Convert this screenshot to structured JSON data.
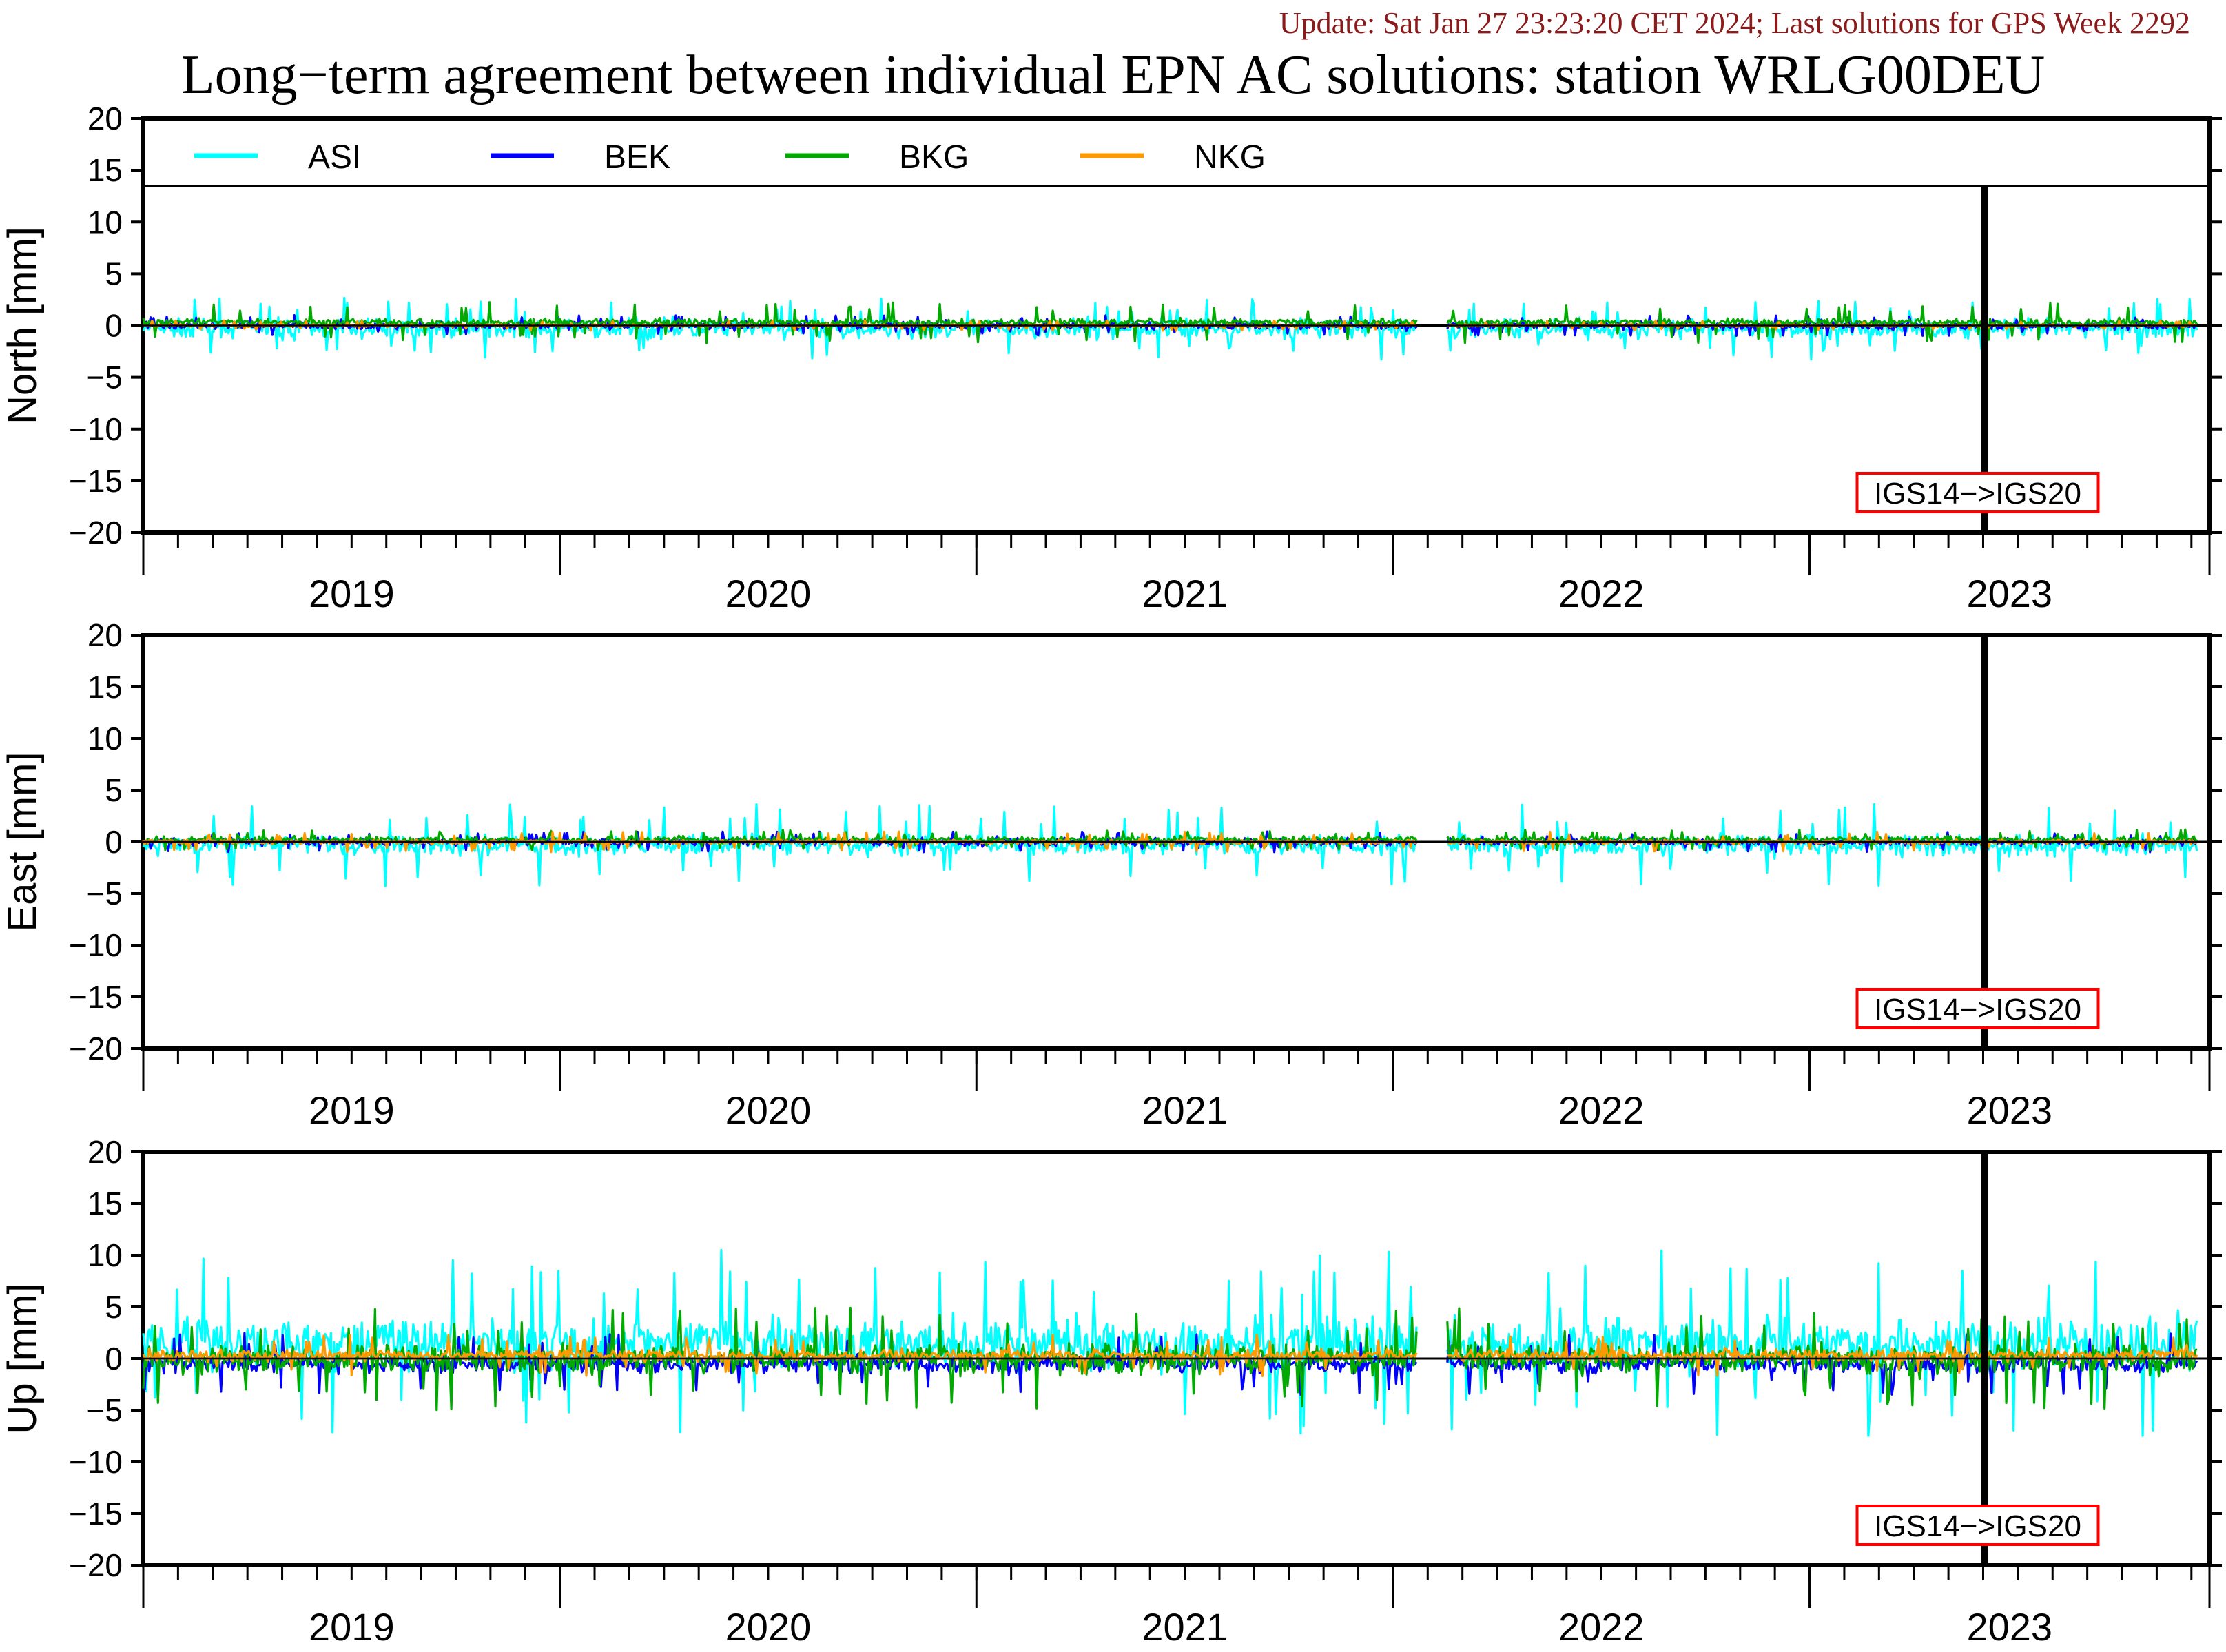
{
  "update_text": "Update: Sat Jan 27 23:23:20 CET 2024; Last solutions for GPS Week 2292",
  "title": "Long−term agreement between individual EPN AC solutions: station WRLG00DEU",
  "colors": {
    "ASI": "#00ffff",
    "BEK": "#0000ff",
    "BKG": "#00aa00",
    "NKG": "#ff9900",
    "annotation_border": "#ff0000",
    "update_text": "#8b1a1a"
  },
  "legend": [
    "ASI",
    "BEK",
    "BKG",
    "NKG"
  ],
  "annotation": {
    "label": "IGS14−>IGS20",
    "date": 2022.92
  },
  "chart_data": [
    {
      "type": "line",
      "panel": "north",
      "ylabel": "North [mm]",
      "ylim": [
        -20,
        20
      ],
      "yticks": [
        20,
        15,
        10,
        5,
        0,
        -5,
        -10,
        -15,
        -20
      ],
      "xlim": [
        2018.5,
        2023.46
      ],
      "xtick_labels": [
        "2019",
        "2020",
        "2021",
        "2022",
        "2023"
      ],
      "legend_in_panel": true,
      "series": [
        {
          "name": "ASI",
          "amplitude": 1.3,
          "bias": -0.3,
          "spike": 3.0
        },
        {
          "name": "BEK",
          "amplitude": 0.5,
          "bias": 0.0,
          "spike": 1.0
        },
        {
          "name": "BKG",
          "amplitude": 0.5,
          "bias": 0.3,
          "spike": 2.0
        },
        {
          "name": "NKG",
          "amplitude": 0.2,
          "bias": 0.0,
          "spike": 0.5
        }
      ]
    },
    {
      "type": "line",
      "panel": "east",
      "ylabel": "East [mm]",
      "ylim": [
        -20,
        20
      ],
      "yticks": [
        20,
        15,
        10,
        5,
        0,
        -5,
        -10,
        -15,
        -20
      ],
      "xlim": [
        2018.5,
        2023.46
      ],
      "xtick_labels": [
        "2019",
        "2020",
        "2021",
        "2022",
        "2023"
      ],
      "legend_in_panel": false,
      "series": [
        {
          "name": "ASI",
          "amplitude": 1.4,
          "bias": -0.3,
          "spike": 4.0
        },
        {
          "name": "BEK",
          "amplitude": 0.5,
          "bias": 0.0,
          "spike": 1.0
        },
        {
          "name": "BKG",
          "amplitude": 0.5,
          "bias": 0.2,
          "spike": 1.0
        },
        {
          "name": "NKG",
          "amplitude": 0.3,
          "bias": 0.0,
          "spike": 1.0
        }
      ]
    },
    {
      "type": "line",
      "panel": "up",
      "ylabel": "Up [mm]",
      "ylim": [
        -20,
        20
      ],
      "yticks": [
        20,
        15,
        10,
        5,
        0,
        -5,
        -10,
        -15,
        -20
      ],
      "xlim": [
        2018.5,
        2023.46
      ],
      "xtick_labels": [
        "2019",
        "2020",
        "2021",
        "2022",
        "2023"
      ],
      "legend_in_panel": false,
      "series": [
        {
          "name": "ASI",
          "amplitude": 3.5,
          "bias": 1.5,
          "spike": 9.0
        },
        {
          "name": "BEK",
          "amplitude": 1.2,
          "bias": -0.5,
          "spike": 3.0
        },
        {
          "name": "BKG",
          "amplitude": 2.0,
          "bias": 0.0,
          "spike": 5.0
        },
        {
          "name": "NKG",
          "amplitude": 0.8,
          "bias": 0.3,
          "spike": 2.0
        }
      ]
    }
  ]
}
